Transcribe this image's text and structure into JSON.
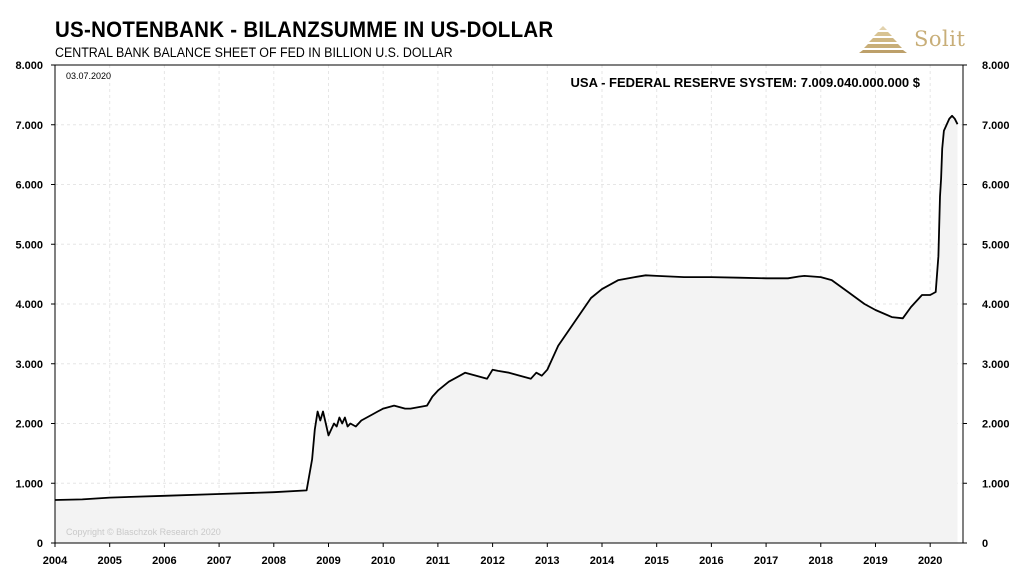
{
  "header": {
    "title": "US-NOTENBANK - BILANZSUMME IN US-DOLLAR",
    "subtitle": "CENTRAL BANK BALANCE SHEET OF FED IN BILLION U.S. DOLLAR",
    "logo_text": "Solit",
    "logo_icon": "pyramid-logo-icon",
    "logo_color": "#c8ae78"
  },
  "chart_data": {
    "type": "area",
    "date_label": "03.07.2020",
    "annotation": "USA - FEDERAL RESERVE SYSTEM: 7.009.040.000.000 $",
    "copyright": "Copyright © Blaschzok Research 2020",
    "xlim": [
      2004,
      2020.6
    ],
    "ylim": [
      0,
      8000
    ],
    "y_ticks": [
      0,
      1000,
      2000,
      3000,
      4000,
      5000,
      6000,
      7000,
      8000
    ],
    "y_tick_labels": [
      "0",
      "1.000",
      "2.000",
      "3.000",
      "4.000",
      "5.000",
      "6.000",
      "7.000",
      "8.000"
    ],
    "x_ticks": [
      "2004",
      "2005",
      "2006",
      "2007",
      "2008",
      "2009",
      "2010",
      "2011",
      "2012",
      "2013",
      "2014",
      "2015",
      "2016",
      "2017",
      "2018",
      "2019",
      "2020"
    ],
    "grid": true,
    "line_color": "#000000",
    "fill_color": "#f3f3f3",
    "series": [
      {
        "x": [
          2004.0,
          2004.5,
          2005.0,
          2006.0,
          2007.0,
          2008.0,
          2008.6,
          2008.7,
          2008.75,
          2008.8,
          2008.85,
          2008.9,
          2008.95,
          2009.0,
          2009.05,
          2009.1,
          2009.15,
          2009.2,
          2009.25,
          2009.3,
          2009.35,
          2009.4,
          2009.5,
          2009.6,
          2009.7,
          2009.8,
          2009.9,
          2010.0,
          2010.2,
          2010.4,
          2010.5,
          2010.8,
          2010.9,
          2011.0,
          2011.2,
          2011.4,
          2011.5,
          2011.7,
          2011.9,
          2012.0,
          2012.1,
          2012.3,
          2012.5,
          2012.7,
          2012.8,
          2012.9,
          2013.0,
          2013.2,
          2013.5,
          2013.8,
          2014.0,
          2014.3,
          2014.6,
          2014.8,
          2015.0,
          2015.5,
          2016.0,
          2016.5,
          2017.0,
          2017.4,
          2017.6,
          2017.7,
          2018.0,
          2018.2,
          2018.5,
          2018.8,
          2019.0,
          2019.3,
          2019.5,
          2019.65,
          2019.75,
          2019.85,
          2020.0,
          2020.1,
          2020.15,
          2020.18,
          2020.2,
          2020.22,
          2020.25,
          2020.3,
          2020.35,
          2020.4,
          2020.45,
          2020.5
        ],
        "values": [
          720,
          730,
          760,
          790,
          820,
          850,
          880,
          1400,
          1900,
          2200,
          2050,
          2200,
          2000,
          1800,
          1900,
          2000,
          1950,
          2100,
          2000,
          2100,
          1950,
          2000,
          1950,
          2050,
          2100,
          2150,
          2200,
          2250,
          2300,
          2250,
          2250,
          2300,
          2450,
          2550,
          2700,
          2800,
          2850,
          2800,
          2750,
          2900,
          2880,
          2850,
          2800,
          2750,
          2850,
          2800,
          2900,
          3300,
          3700,
          4100,
          4250,
          4400,
          4450,
          4480,
          4470,
          4450,
          4450,
          4440,
          4430,
          4430,
          4460,
          4470,
          4450,
          4400,
          4200,
          4000,
          3900,
          3780,
          3760,
          3950,
          4050,
          4150,
          4150,
          4200,
          4800,
          5800,
          6100,
          6600,
          6900,
          7000,
          7100,
          7150,
          7100,
          7009
        ]
      }
    ]
  }
}
